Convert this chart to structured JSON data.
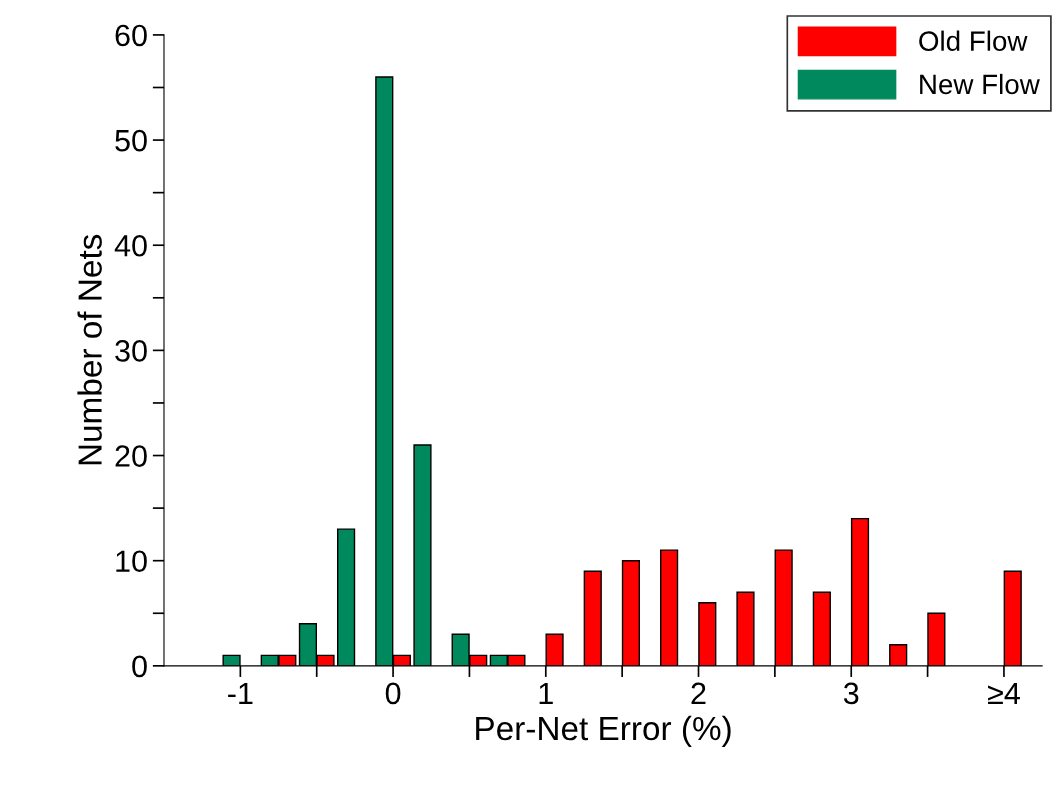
{
  "chart_data": {
    "type": "bar",
    "xlabel": "Per-Net Error (%)",
    "ylabel": "Number of Nets",
    "x": [
      -1,
      -0.75,
      -0.5,
      -0.25,
      0,
      0.25,
      0.5,
      0.75,
      1,
      1.25,
      1.5,
      1.75,
      2,
      2.25,
      2.5,
      2.75,
      3,
      3.25,
      3.5,
      3.75,
      4
    ],
    "series": [
      {
        "name": "Old Flow",
        "color": "#ff0000",
        "values": [
          null,
          1,
          1,
          null,
          1,
          null,
          1,
          1,
          3,
          9,
          10,
          11,
          6,
          7,
          11,
          7,
          14,
          2,
          5,
          null,
          9
        ]
      },
      {
        "name": "New Flow",
        "color": "#00895c",
        "values": [
          1,
          1,
          4,
          13,
          56,
          21,
          3,
          1,
          null,
          null,
          null,
          null,
          null,
          null,
          null,
          null,
          null,
          null,
          null,
          null,
          null
        ]
      }
    ],
    "xlim": [
      -1.5,
      4.25
    ],
    "xticks": [
      -1,
      {
        "value": -0.5,
        "label": null
      },
      0,
      {
        "value": 0.5,
        "label": null
      },
      1,
      {
        "value": 1.5,
        "label": null
      },
      2,
      {
        "value": 2.5,
        "label": null
      },
      3,
      {
        "value": 3.5,
        "label": null
      },
      {
        "value": 4,
        "label": "≥4"
      }
    ],
    "ylim": [
      0,
      60
    ],
    "yticks": [
      0,
      {
        "value": 5,
        "label": null
      },
      10,
      {
        "value": 15,
        "label": null
      },
      20,
      {
        "value": 25,
        "label": null
      },
      30,
      {
        "value": 35,
        "label": null
      },
      40,
      {
        "value": 45,
        "label": null
      },
      50,
      {
        "value": 55,
        "label": null
      },
      60
    ],
    "legend": "top right",
    "grid": false
  }
}
